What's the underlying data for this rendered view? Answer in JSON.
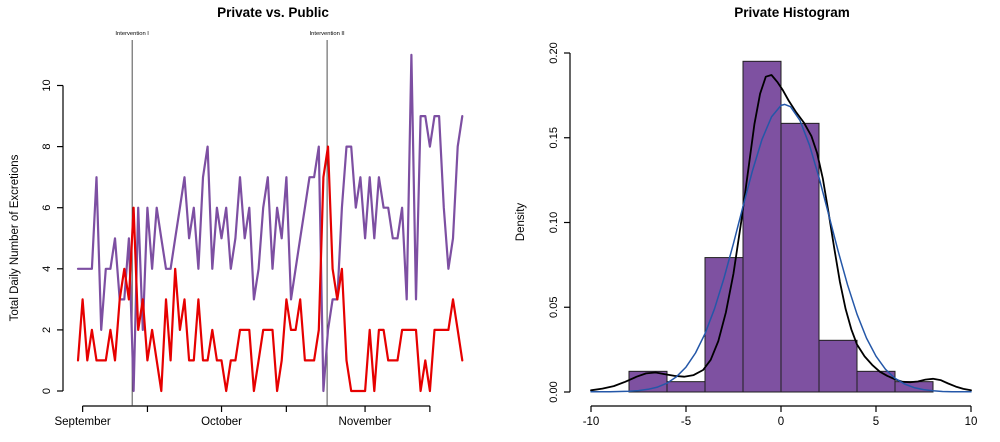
{
  "background": "#ffffff",
  "chart_data": [
    {
      "type": "line",
      "title": "Private vs. Public",
      "xlabel": "",
      "ylabel": "Total Daily Number of Excretions",
      "ylim": [
        0,
        11
      ],
      "yticks": [
        0,
        2,
        4,
        6,
        8,
        10
      ],
      "grid": false,
      "legend": "none",
      "x_description": "daily observations, early September through late November",
      "xticks": [
        {
          "i": 1,
          "label": "September"
        },
        {
          "i": 15,
          "label": ""
        },
        {
          "i": 31,
          "label": "October"
        },
        {
          "i": 45,
          "label": ""
        },
        {
          "i": 62,
          "label": "November"
        },
        {
          "i": 76,
          "label": ""
        }
      ],
      "annotations": [
        {
          "label": "Intervention I",
          "x": 11.7
        },
        {
          "label": "Intervention II",
          "x": 53.8
        }
      ],
      "annotation_line_color": "#3c3c3c",
      "series": [
        {
          "name": "purple-series",
          "color": "#7d4fa2",
          "values": [
            4,
            4,
            4,
            4,
            7,
            2,
            4,
            4,
            5,
            3,
            3,
            5,
            0,
            6,
            2,
            6,
            4,
            6,
            5,
            4,
            4,
            5,
            6,
            7,
            5,
            6,
            4,
            7,
            8,
            4,
            6,
            5,
            6,
            4,
            5,
            7,
            5,
            6,
            3,
            4,
            6,
            7,
            4,
            6,
            5,
            7,
            3,
            4,
            5,
            6,
            7,
            7,
            8,
            0,
            2,
            3,
            3,
            6,
            8,
            8,
            6,
            7,
            5,
            7,
            5,
            7,
            6,
            6,
            5,
            5,
            6,
            3,
            11,
            3,
            9,
            9,
            8,
            9,
            9,
            6,
            4,
            5,
            8,
            9
          ]
        },
        {
          "name": "red-series",
          "color": "#e60000",
          "values": [
            1,
            3,
            1,
            2,
            1,
            1,
            1,
            2,
            1,
            3,
            4,
            3,
            6,
            2,
            3,
            1,
            2,
            1,
            0,
            3,
            1,
            4,
            2,
            3,
            1,
            1,
            3,
            1,
            1,
            2,
            1,
            1,
            0,
            1,
            1,
            2,
            2,
            2,
            0,
            1,
            2,
            2,
            2,
            0,
            1,
            3,
            2,
            2,
            3,
            1,
            1,
            1,
            2,
            7,
            8,
            4,
            3,
            4,
            1,
            0,
            0,
            0,
            0,
            2,
            0,
            2,
            2,
            1,
            1,
            1,
            2,
            2,
            2,
            2,
            0,
            1,
            0,
            2,
            2,
            2,
            2,
            3,
            2,
            1
          ]
        }
      ]
    },
    {
      "type": "histogram",
      "title": "Private Histogram",
      "xlabel": "",
      "ylabel": "Density",
      "xlim": [
        -10,
        10
      ],
      "ylim": [
        0,
        0.2
      ],
      "xtick_labels": [
        "-10",
        "-5",
        "0",
        "5",
        "10"
      ],
      "xtick_values": [
        -10,
        -5,
        0,
        5,
        10
      ],
      "ytick_labels": [
        "0.00",
        "0.05",
        "0.10",
        "0.15",
        "0.20"
      ],
      "ytick_values": [
        0,
        0.05,
        0.1,
        0.15,
        0.2
      ],
      "bar_color": "#7e51a1",
      "bar_border_color": "#1f1f1f",
      "breaks": [
        -8,
        -6,
        -4,
        -2,
        0,
        2,
        4,
        6,
        8
      ],
      "densities": [
        0.0122,
        0.0061,
        0.0793,
        0.1951,
        0.1585,
        0.0305,
        0.0122,
        0.0061
      ],
      "counts": [
        2,
        1,
        13,
        32,
        26,
        5,
        2,
        1
      ],
      "n": 82,
      "curves": [
        {
          "name": "kernel-density-curve",
          "color": "#000000",
          "width": 1.8,
          "points": [
            [
              -10,
              0.001
            ],
            [
              -9.4,
              0.002
            ],
            [
              -8.8,
              0.0035
            ],
            [
              -8.2,
              0.006
            ],
            [
              -7.6,
              0.009
            ],
            [
              -7.1,
              0.011
            ],
            [
              -6.6,
              0.0115
            ],
            [
              -6.1,
              0.0105
            ],
            [
              -5.6,
              0.0095
            ],
            [
              -5.1,
              0.009
            ],
            [
              -4.6,
              0.01
            ],
            [
              -4.1,
              0.013
            ],
            [
              -3.7,
              0.019
            ],
            [
              -3.3,
              0.03
            ],
            [
              -2.9,
              0.047
            ],
            [
              -2.5,
              0.07
            ],
            [
              -2.1,
              0.1
            ],
            [
              -1.7,
              0.133
            ],
            [
              -1.4,
              0.158
            ],
            [
              -1.1,
              0.176
            ],
            [
              -0.8,
              0.186
            ],
            [
              -0.5,
              0.187
            ],
            [
              -0.2,
              0.183
            ],
            [
              0.1,
              0.178
            ],
            [
              0.4,
              0.172
            ],
            [
              0.8,
              0.165
            ],
            [
              1.2,
              0.159
            ],
            [
              1.6,
              0.151
            ],
            [
              1.9,
              0.141
            ],
            [
              2.2,
              0.126
            ],
            [
              2.5,
              0.106
            ],
            [
              2.8,
              0.085
            ],
            [
              3.1,
              0.065
            ],
            [
              3.4,
              0.049
            ],
            [
              3.7,
              0.037
            ],
            [
              4.0,
              0.028
            ],
            [
              4.4,
              0.021
            ],
            [
              4.8,
              0.016
            ],
            [
              5.2,
              0.012
            ],
            [
              5.6,
              0.0095
            ],
            [
              6.0,
              0.0075
            ],
            [
              6.4,
              0.006
            ],
            [
              6.8,
              0.0058
            ],
            [
              7.2,
              0.0062
            ],
            [
              7.6,
              0.0073
            ],
            [
              8.0,
              0.0078
            ],
            [
              8.4,
              0.007
            ],
            [
              8.8,
              0.005
            ],
            [
              9.2,
              0.0032
            ],
            [
              9.6,
              0.0018
            ],
            [
              10,
              0.001
            ]
          ]
        },
        {
          "name": "normal-fit-curve",
          "color": "#2457a8",
          "width": 1.5,
          "points": [
            [
              -10,
              0.0001
            ],
            [
              -9.5,
              0.0001
            ],
            [
              -9,
              0.0002
            ],
            [
              -8.5,
              0.0003
            ],
            [
              -8,
              0.0004
            ],
            [
              -7.5,
              0.0008
            ],
            [
              -7,
              0.0016
            ],
            [
              -6.5,
              0.0029
            ],
            [
              -6,
              0.0052
            ],
            [
              -5.5,
              0.009
            ],
            [
              -5,
              0.0147
            ],
            [
              -4.5,
              0.023
            ],
            [
              -4,
              0.0344
            ],
            [
              -3.5,
              0.0491
            ],
            [
              -3,
              0.0672
            ],
            [
              -2.5,
              0.0877
            ],
            [
              -2,
              0.1095
            ],
            [
              -1.5,
              0.1306
            ],
            [
              -1,
              0.149
            ],
            [
              -0.5,
              0.1623
            ],
            [
              0,
              0.1691
            ],
            [
              0.2,
              0.1697
            ],
            [
              0.5,
              0.1683
            ],
            [
              1,
              0.1602
            ],
            [
              1.5,
              0.1456
            ],
            [
              2,
              0.1266
            ],
            [
              2.5,
              0.1051
            ],
            [
              3,
              0.0834
            ],
            [
              3.5,
              0.0633
            ],
            [
              4,
              0.0459
            ],
            [
              4.5,
              0.0318
            ],
            [
              5,
              0.0211
            ],
            [
              5.5,
              0.0134
            ],
            [
              6,
              0.0081
            ],
            [
              6.5,
              0.0047
            ],
            [
              7,
              0.0026
            ],
            [
              7.5,
              0.0014
            ],
            [
              8,
              0.0007
            ],
            [
              8.5,
              0.0003
            ],
            [
              9,
              0.0002
            ],
            [
              9.5,
              0.0001
            ],
            [
              10,
              0.0001
            ]
          ]
        }
      ]
    }
  ]
}
